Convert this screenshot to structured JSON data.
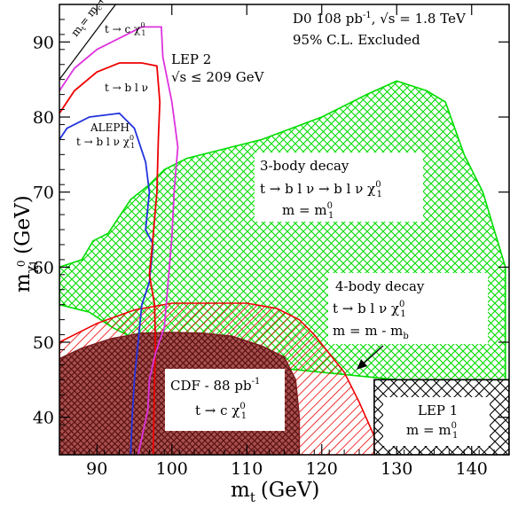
{
  "chart_data": {
    "type": "area",
    "title": "",
    "xlabel": "m",
    "xlabel_sub": "t",
    "xlabel_unit": "(GeV)",
    "ylabel": "m",
    "ylabel_sub": "χ",
    "ylabel_sup": "0",
    "ylabel_subsub": "1",
    "ylabel_unit": "(GeV)",
    "xlim": [
      85,
      145
    ],
    "ylim": [
      35,
      95
    ],
    "xticks": [
      90,
      100,
      110,
      120,
      130,
      140
    ],
    "yticks": [
      40,
      50,
      60,
      70,
      80,
      90
    ],
    "grid": false,
    "header": {
      "line1": "D0 108 pb",
      "line1_sup": "-1",
      "line1_rest": ", √s = 1.8 TeV",
      "line2": "95% C.L. Excluded"
    },
    "series": [
      {
        "name": "3-body decay",
        "color": "#00dd00",
        "fill": "crosshatch",
        "x": [
          85,
          88,
          89.5,
          91.5,
          92.5,
          94.5,
          97,
          99,
          102,
          106,
          112,
          120,
          126,
          130,
          134,
          136.5,
          139,
          141.5,
          144.5,
          144.5,
          130,
          120,
          110,
          100,
          96,
          92,
          89,
          85
        ],
        "y": [
          60,
          61,
          63.5,
          64.5,
          66,
          69,
          71,
          73,
          74.5,
          75.5,
          77,
          80,
          83,
          84.8,
          83.5,
          82,
          75,
          70,
          60,
          45,
          45,
          46,
          47,
          48.5,
          50,
          52,
          54,
          55
        ]
      },
      {
        "name": "4-body decay",
        "color": "#ee0000",
        "fill": "hatch",
        "x": [
          85,
          90,
          95,
          100,
          105,
          110,
          114,
          117,
          119,
          121,
          123,
          125,
          127,
          127,
          85
        ],
        "y": [
          50,
          52.5,
          54.3,
          55.2,
          55.2,
          55.2,
          54.5,
          53,
          51,
          48.5,
          46,
          42,
          37.5,
          35,
          35
        ]
      },
      {
        "name": "CDF - 88 pb-1",
        "color": "#7a1f1f",
        "fill": "crosshatch",
        "x": [
          85,
          88,
          92,
          96,
          100,
          104,
          108,
          112,
          115,
          116.5,
          117,
          117,
          85
        ],
        "y": [
          47.8,
          49.2,
          50.5,
          51.2,
          51.3,
          51.2,
          50.8,
          49.5,
          48,
          45,
          40,
          35,
          35
        ]
      },
      {
        "name": "LEP 1",
        "color": "#000000",
        "fill": "crosshatch",
        "x": [
          127,
          145,
          145,
          127
        ],
        "y": [
          45,
          45,
          35,
          35
        ]
      },
      {
        "name": "ALEPH t→b l ν χ1",
        "color": "#2233dd",
        "fill": "none",
        "x": [
          85,
          86,
          89,
          93,
          95,
          96.5,
          97,
          96.5,
          97.5,
          97,
          96,
          95.5,
          95,
          94.7,
          94.5
        ],
        "y": [
          77,
          78.5,
          80,
          80.5,
          78.5,
          74,
          70,
          65,
          63,
          58,
          55,
          50,
          45,
          40,
          35
        ]
      },
      {
        "name": "LEP 2 t→b l ν",
        "color": "#ee0000",
        "fill": "none",
        "x": [
          85,
          87,
          90,
          93,
          96,
          98,
          98.4,
          98.2,
          98,
          97.4,
          97,
          97.7,
          97.8,
          97.7,
          97.6,
          97.5
        ],
        "y": [
          80.5,
          83.5,
          86,
          87.2,
          87.2,
          86.8,
          82,
          77,
          70,
          63,
          59,
          55,
          50,
          45,
          40,
          35
        ]
      },
      {
        "name": "LEP 2 t→c χ1",
        "color": "#dd33dd",
        "fill": "none",
        "x": [
          85,
          87,
          90,
          93,
          96,
          98,
          98.6,
          98.8,
          100,
          100.8,
          100.3,
          100,
          99.5,
          99,
          97.8,
          97,
          96.8,
          95.5
        ],
        "y": [
          83.5,
          86.5,
          89,
          90.5,
          92,
          92,
          92,
          88,
          82,
          76,
          70,
          64,
          58,
          52,
          48.5,
          45,
          41,
          35
        ]
      }
    ],
    "boundary_line": {
      "label": "m = m + m",
      "x": [
        85,
        92.5
      ],
      "y": [
        85,
        95
      ]
    },
    "annotations": {
      "lep2_title": "LEP 2",
      "lep2_energy": "√s ≤ 209 GeV",
      "tc_label": "t → c χ",
      "tblnu_label": "t → b l ν",
      "aleph_title": "ALEPH",
      "aleph_decay": "t → b l ν χ",
      "three_body_title": "3-body decay",
      "three_body_decay": "t → b l ν → b l ν χ",
      "three_body_mass": "m  = m",
      "four_body_title": "4-body decay",
      "four_body_decay": "t → b l ν χ",
      "four_body_mass_a": "m  = m  - m",
      "four_body_mass_b": "b",
      "cdf_title": "CDF - 88 pb",
      "cdf_sup": "-1",
      "cdf_decay": "t → c χ",
      "lep1_title": "LEP 1",
      "lep1_mass": "m  = m",
      "mass_sub_v": "ν",
      "mass_sub_chi": "χ",
      "mass_sub_t": "t",
      "chi_sup": "0",
      "chi_sub": "1",
      "boundary_m": "m",
      "boundary_t": "t",
      "boundary_eq": "= m",
      "boundary_c": "c",
      "boundary_plus": "+ m",
      "boundary_chi": "χ",
      "boundary_0": "0",
      "boundary_1": "1"
    }
  }
}
